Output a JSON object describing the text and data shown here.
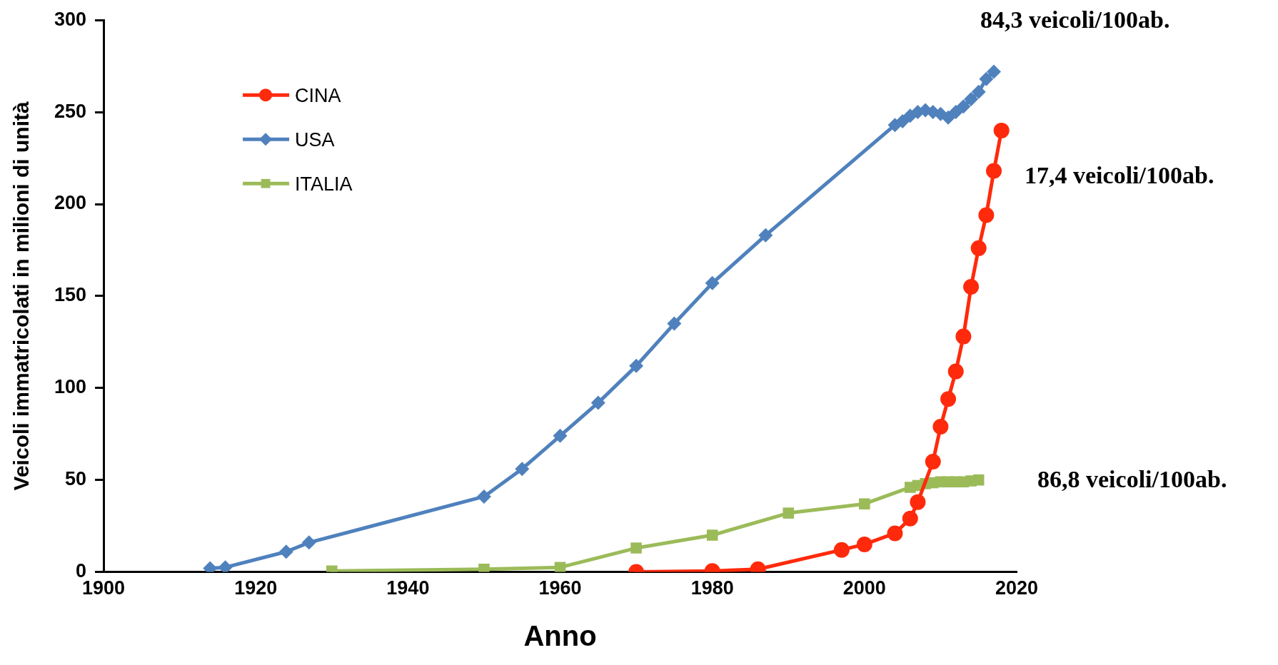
{
  "chart_data": {
    "type": "line",
    "xlabel": "Anno",
    "ylabel": "Veicoli immatricolati in milioni di unità",
    "xlim": [
      1900,
      2020
    ],
    "xticks": [
      1900,
      1920,
      1940,
      1960,
      1980,
      2000,
      2020
    ],
    "ylim": [
      0,
      300
    ],
    "yticks": [
      0,
      50,
      100,
      150,
      200,
      250,
      300
    ],
    "grid": false,
    "legend": "top left",
    "series": [
      {
        "name": "CINA",
        "color": "#ff2a0c",
        "marker": "circle",
        "x": [
          1970,
          1980,
          1986,
          1997,
          2000,
          2004,
          2006,
          2007,
          2009,
          2010,
          2011,
          2012,
          2013,
          2014,
          2015,
          2016,
          2017,
          2018
        ],
        "values": [
          0,
          0.5,
          1.5,
          12,
          15,
          21,
          29,
          38,
          60,
          79,
          94,
          109,
          128,
          155,
          176,
          194,
          218,
          240
        ]
      },
      {
        "name": "USA",
        "color": "#4f81bd",
        "marker": "diamond",
        "x": [
          1914,
          1916,
          1924,
          1927,
          1950,
          1955,
          1960,
          1965,
          1970,
          1975,
          1980,
          1987,
          2004,
          2005,
          2006,
          2007,
          2008,
          2009,
          2010,
          2011,
          2012,
          2013,
          2014,
          2015,
          2016,
          2017
        ],
        "values": [
          2,
          2.5,
          11,
          16,
          41,
          56,
          74,
          92,
          112,
          135,
          157,
          183,
          243,
          245,
          248,
          250,
          251,
          250,
          249,
          247,
          250,
          253,
          257,
          261,
          268,
          272
        ]
      },
      {
        "name": "ITALIA",
        "color": "#9bbb59",
        "marker": "square",
        "x": [
          1930,
          1950,
          1960,
          1970,
          1980,
          1990,
          2000,
          2006,
          2007,
          2008,
          2009,
          2010,
          2011,
          2012,
          2013,
          2014,
          2015
        ],
        "values": [
          0.5,
          1.5,
          2.5,
          13,
          20,
          32,
          37,
          46,
          47,
          48,
          48.5,
          49,
          49,
          49,
          49,
          49.5,
          50
        ]
      }
    ],
    "annotations": [
      "84,3 veicoli/100ab.",
      "17,4 veicoli/100ab.",
      "86,8 veicoli/100ab."
    ]
  }
}
